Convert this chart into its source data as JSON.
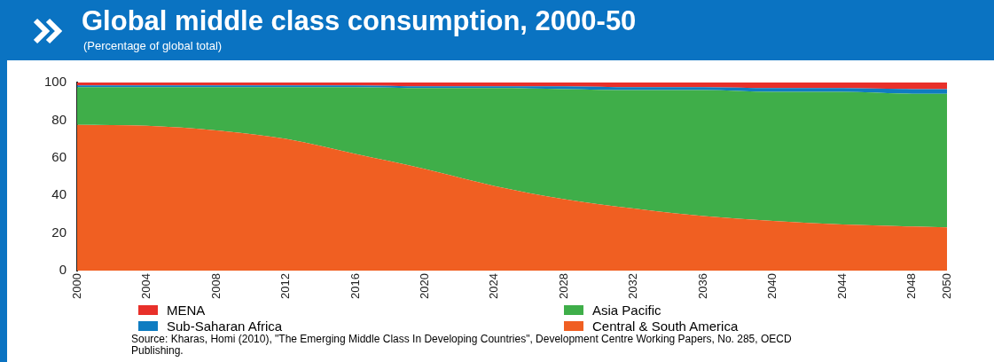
{
  "chart_data": {
    "type": "area",
    "title": "Global middle class consumption, 2000-50",
    "subtitle": "(Percentage of global total)",
    "stacked": true,
    "marker": "none",
    "grid": false,
    "legend": "bottom",
    "x": [
      2000,
      2004,
      2008,
      2012,
      2016,
      2020,
      2024,
      2028,
      2032,
      2036,
      2040,
      2044,
      2048,
      2050
    ],
    "xlim": [
      2000,
      2050
    ],
    "xticks": [
      2000,
      2004,
      2008,
      2012,
      2016,
      2020,
      2024,
      2028,
      2032,
      2036,
      2040,
      2044,
      2048,
      2050
    ],
    "ylim": [
      0,
      100
    ],
    "yticks": [
      0,
      20,
      40,
      60,
      80,
      100
    ],
    "series": [
      {
        "name": "Central & South America",
        "color": "#f05f22",
        "values": [
          77.5,
          77,
          74.5,
          70,
          62,
          54,
          45,
          38,
          33,
          29,
          26.5,
          24.5,
          23.5,
          23
        ]
      },
      {
        "name": "Asia Pacific",
        "color": "#3fae49",
        "values": [
          20,
          20.5,
          23,
          27.5,
          35.5,
          43,
          52,
          58.5,
          63,
          67,
          68.5,
          70.5,
          70.5,
          71
        ]
      },
      {
        "name": "Sub-Saharan Africa",
        "color": "#0f7cc1",
        "values": [
          1,
          1,
          1,
          1,
          1,
          1,
          1,
          1.5,
          1.5,
          1.5,
          2,
          2,
          2.5,
          2.5
        ]
      },
      {
        "name": "MENA",
        "color": "#e8302a",
        "values": [
          1.5,
          1.5,
          1.5,
          1.5,
          1.5,
          2,
          2,
          2,
          2.5,
          2.5,
          3,
          3,
          3.5,
          3.5
        ]
      }
    ],
    "annotations": [
      "Source: Kharas, Homi (2010), \"The Emerging Middle Class In Developing Countries\", Development Centre Working Papers, No. 285, OECD Publishing."
    ]
  }
}
